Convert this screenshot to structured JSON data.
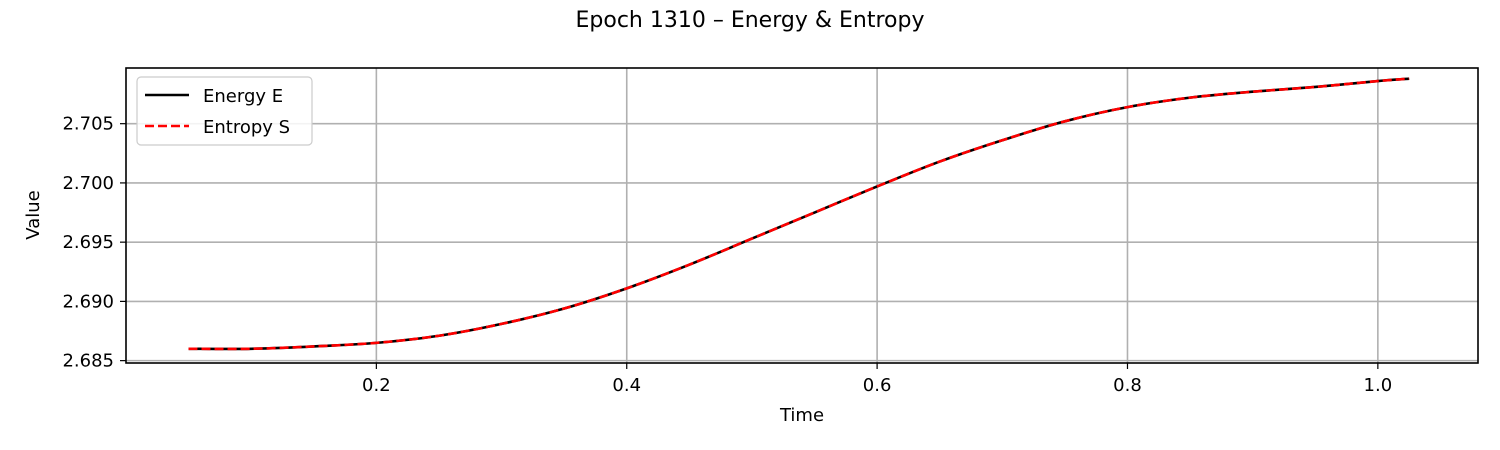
{
  "chart_data": {
    "type": "line",
    "title": "Epoch 1310 – Energy & Entropy",
    "xlabel": "Time",
    "ylabel": "Value",
    "xlim": [
      0.0,
      1.08
    ],
    "ylim": [
      2.6848,
      2.7097
    ],
    "xticks": [
      0.2,
      0.4,
      0.6,
      0.8,
      1.0
    ],
    "xtick_labels": [
      "0.2",
      "0.4",
      "0.6",
      "0.8",
      "1.0"
    ],
    "yticks": [
      2.685,
      2.69,
      2.695,
      2.7,
      2.705
    ],
    "ytick_labels": [
      "2.685",
      "2.690",
      "2.695",
      "2.700",
      "2.705"
    ],
    "grid": true,
    "legend_position": "top-left",
    "x": [
      0.05,
      0.1,
      0.15,
      0.2,
      0.25,
      0.3,
      0.35,
      0.4,
      0.45,
      0.5,
      0.55,
      0.6,
      0.65,
      0.7,
      0.75,
      0.8,
      0.85,
      0.9,
      0.95,
      1.0,
      1.025
    ],
    "series": [
      {
        "name": "Energy E",
        "color": "#000000",
        "style": "solid",
        "values": [
          2.686,
          2.686,
          2.6862,
          2.6865,
          2.6871,
          2.6881,
          2.6894,
          2.6911,
          2.6931,
          2.6953,
          2.6975,
          2.6997,
          2.7018,
          2.7036,
          2.7052,
          2.7064,
          2.7072,
          2.7077,
          2.7081,
          2.7086,
          2.7088
        ]
      },
      {
        "name": "Entropy S",
        "color": "#ff0000",
        "style": "dashed",
        "values": [
          2.686,
          2.686,
          2.6862,
          2.6865,
          2.6871,
          2.6881,
          2.6894,
          2.6911,
          2.6931,
          2.6953,
          2.6975,
          2.6997,
          2.7018,
          2.7036,
          2.7052,
          2.7064,
          2.7072,
          2.7077,
          2.7081,
          2.7086,
          2.7088
        ]
      }
    ]
  }
}
